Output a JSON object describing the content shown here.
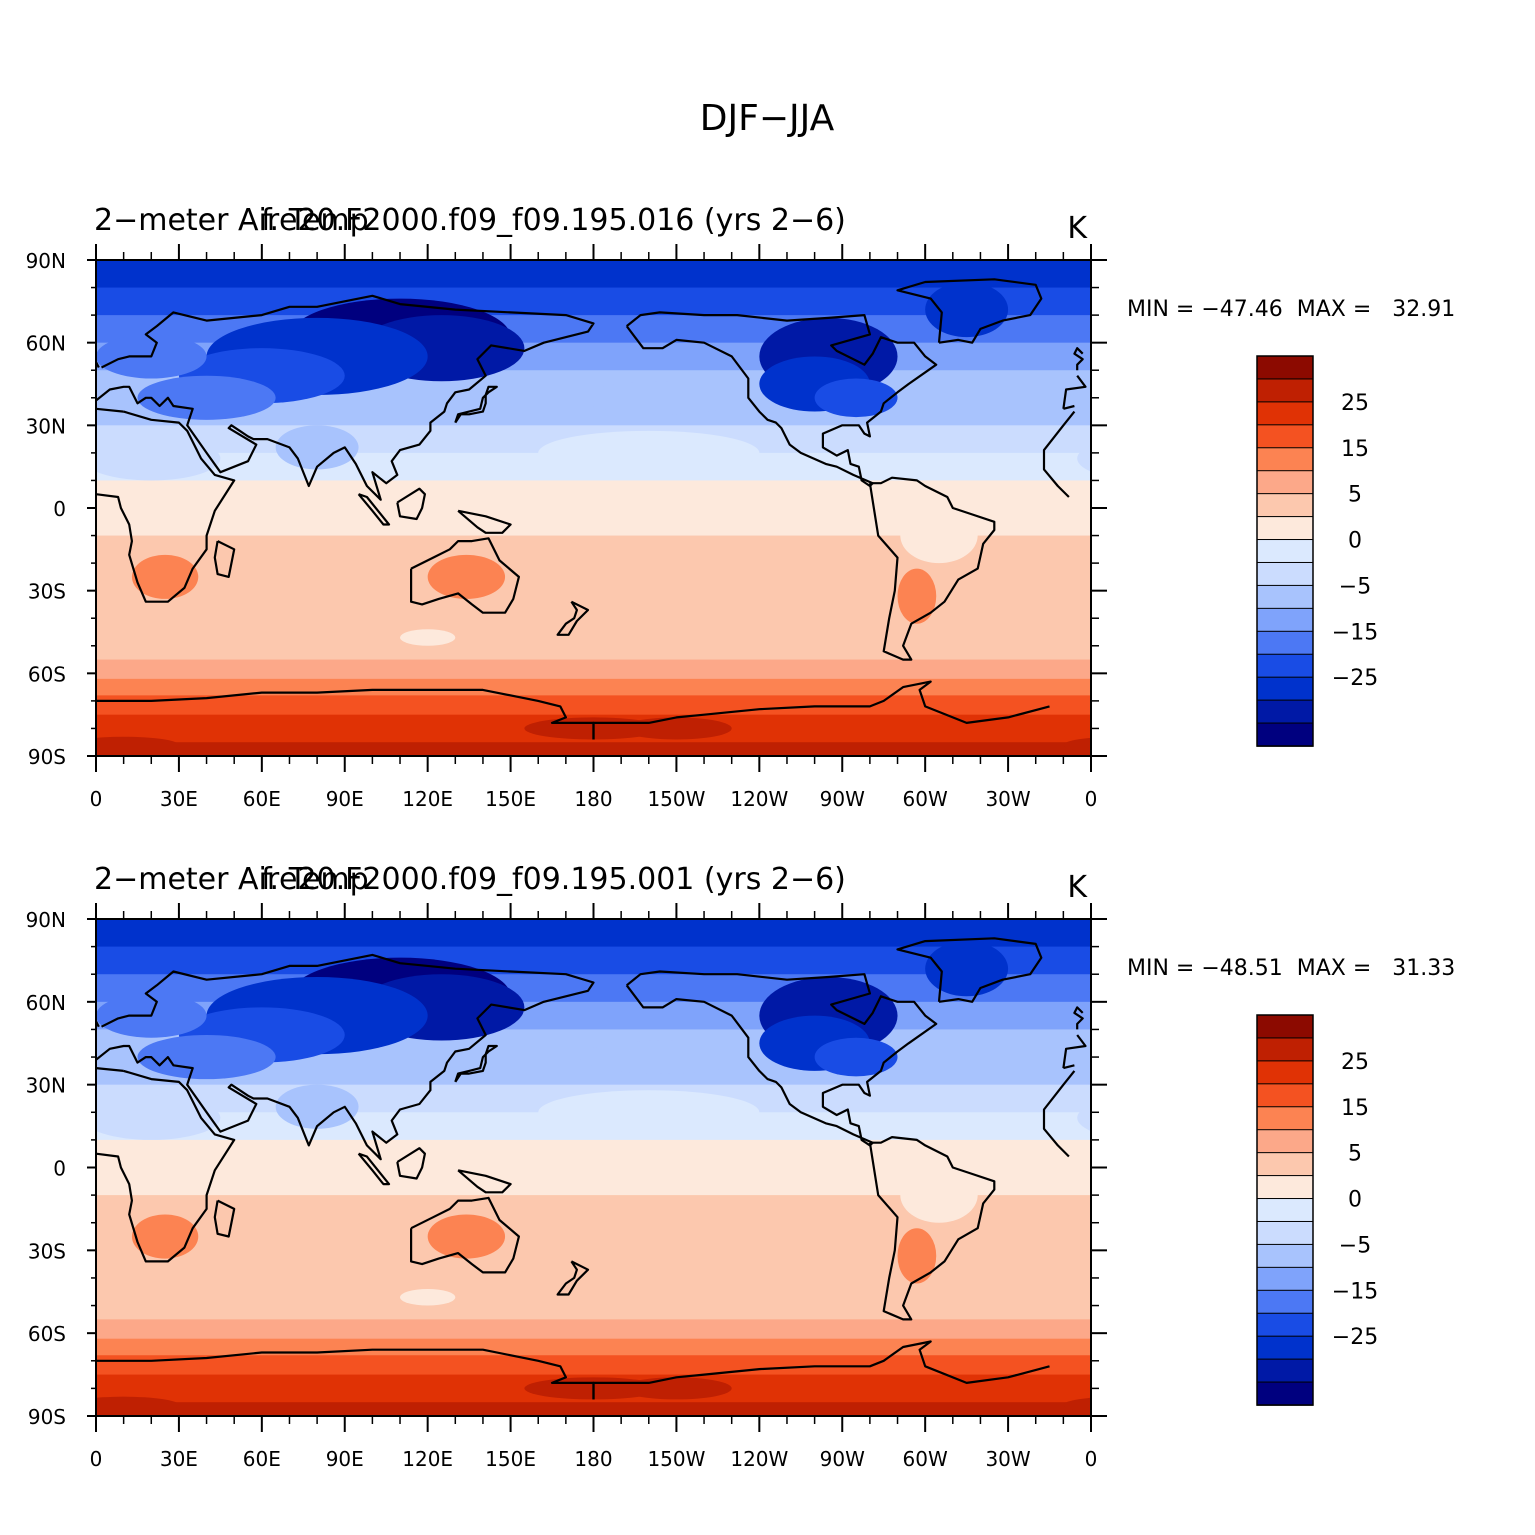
{
  "page": {
    "title": "DJF−JJA"
  },
  "colors": {
    "palette": [
      "#00007f",
      "#0019a6",
      "#0032cc",
      "#194ce5",
      "#4c78f4",
      "#7fa3fb",
      "#a8c3fd",
      "#cbdcfe",
      "#dbe9fe",
      "#fde9dc",
      "#fcc8ae",
      "#fca889",
      "#fc8352",
      "#f45221",
      "#e03205",
      "#bf2002",
      "#8c0a00"
    ],
    "land_outline": "#000000"
  },
  "colorbar": {
    "labels": [
      "25",
      "15",
      "5",
      "0",
      "−5",
      "−15",
      "−25"
    ]
  },
  "axes": {
    "lat_labels": [
      "90N",
      "60N",
      "30N",
      "0",
      "30S",
      "60S",
      "90S"
    ],
    "lon_labels": [
      "0",
      "30E",
      "60E",
      "90E",
      "120E",
      "150E",
      "180",
      "150W",
      "120W",
      "90W",
      "60W",
      "30W",
      "0"
    ]
  },
  "panels": [
    {
      "left_title": "2−meter Air Temp",
      "center_title": "f.e20.F2000.f09_f09.195.016 (yrs 2−6)",
      "units": "K",
      "stats": "MIN = −47.46  MAX =   32.91"
    },
    {
      "left_title": "2−meter Air Temp",
      "center_title": "f.e20.F2000.f09_f09.195.001 (yrs 2−6)",
      "units": "K",
      "stats": "MIN = −48.51  MAX =   31.33"
    }
  ],
  "chart_data": {
    "type": "heatmap",
    "variable": "2−meter Air Temp",
    "units": "K",
    "contour_levels": [
      -30,
      -25,
      -20,
      -15,
      -10,
      -5,
      -2,
      0,
      2,
      5,
      10,
      15,
      20,
      25,
      30
    ],
    "panels": [
      {
        "case": "f.e20.F2000.f09_f09.195.016",
        "years": "2−6",
        "min": -47.46,
        "max": 32.91
      },
      {
        "case": "f.e20.F2000.f09_f09.195.001",
        "years": "2−6",
        "min": -48.51,
        "max": 31.33
      }
    ]
  }
}
